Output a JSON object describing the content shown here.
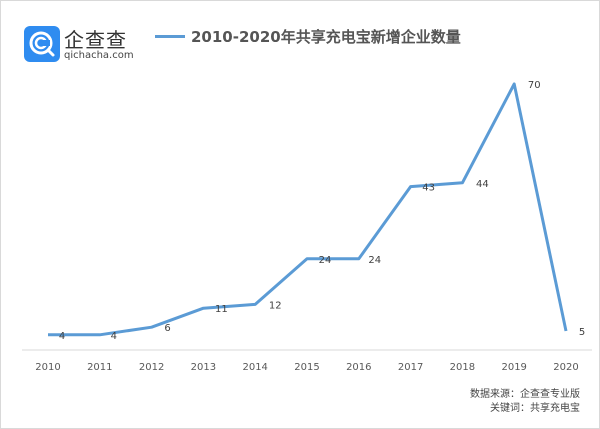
{
  "brand": {
    "name_cn": "企查查",
    "domain": "qichacha.com",
    "icon": "qichacha-logo-icon",
    "color": "#2f8cf0"
  },
  "legend": {
    "label": "2010-2020年共享充电宝新增企业数量",
    "color": "#5b9bd5"
  },
  "source": {
    "line1": "数据来源：企查查专业版",
    "line2": "关键词：共享充电宝"
  },
  "chart_data": {
    "type": "line",
    "title": "2010-2020年共享充电宝新增企业数量",
    "xlabel": "",
    "ylabel": "",
    "categories": [
      "2010",
      "2011",
      "2012",
      "2013",
      "2014",
      "2015",
      "2016",
      "2017",
      "2018",
      "2019",
      "2020"
    ],
    "series": [
      {
        "name": "2010-2020年共享充电宝新增企业数量",
        "color": "#5b9bd5",
        "values": [
          4,
          4,
          6,
          11,
          12,
          24,
          24,
          43,
          44,
          70,
          5
        ]
      }
    ],
    "ylim": [
      0,
      70
    ],
    "grid": false,
    "legend_position": "top",
    "data_labels": true
  }
}
